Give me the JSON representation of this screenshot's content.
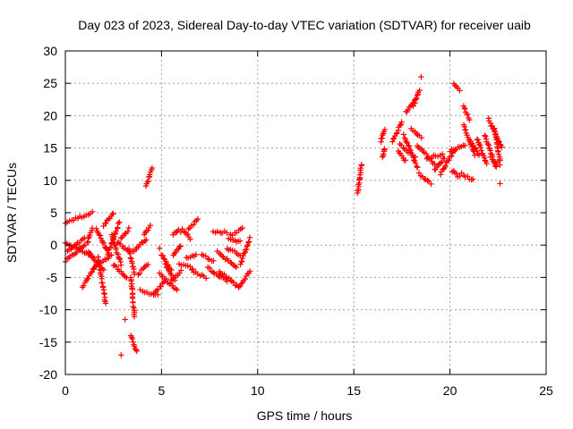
{
  "chart_data": {
    "type": "scatter",
    "title": "Day 023 of 2023, Sidereal Day-to-day VTEC variation (SDTVAR) for receiver uaib",
    "xlabel": "GPS time / hours",
    "ylabel": "SDTVAR / TECUs",
    "xlim": [
      0,
      25
    ],
    "ylim": [
      -20,
      30
    ],
    "xticks": [
      0,
      5,
      10,
      15,
      20,
      25
    ],
    "yticks": [
      -20,
      -15,
      -10,
      -5,
      0,
      5,
      10,
      15,
      20,
      25,
      30
    ],
    "grid": true,
    "marker": "+",
    "color": "#ff0000",
    "segments": [
      {
        "x0": 0.0,
        "y0": -2.5,
        "x1": 1.2,
        "y1": 0.5
      },
      {
        "x0": 0.0,
        "y0": 3.5,
        "x1": 1.4,
        "y1": 5.0
      },
      {
        "x0": 0.0,
        "y0": 0.5,
        "x1": 1.5,
        "y1": -2.0
      },
      {
        "x0": 0.1,
        "y0": -1.0,
        "x1": 1.0,
        "y1": 1.0
      },
      {
        "x0": 0.9,
        "y0": -6.5,
        "x1": 1.6,
        "y1": -3.0
      },
      {
        "x0": 1.2,
        "y0": 1.0,
        "x1": 1.4,
        "y1": 2.5
      },
      {
        "x0": 1.2,
        "y0": -1.0,
        "x1": 2.0,
        "y1": -4.0
      },
      {
        "x0": 1.5,
        "y0": -3.5,
        "x1": 2.4,
        "y1": -1.5
      },
      {
        "x0": 1.6,
        "y0": 2.5,
        "x1": 2.2,
        "y1": -1.0
      },
      {
        "x0": 1.7,
        "y0": -2.0,
        "x1": 2.1,
        "y1": -9.0
      },
      {
        "x0": 2.0,
        "y0": 3.0,
        "x1": 2.5,
        "y1": 5.0
      },
      {
        "x0": 2.2,
        "y0": -1.5,
        "x1": 2.8,
        "y1": 3.5
      },
      {
        "x0": 2.4,
        "y0": 1.5,
        "x1": 2.9,
        "y1": -3.0
      },
      {
        "x0": 2.5,
        "y0": -3.0,
        "x1": 3.2,
        "y1": -5.0
      },
      {
        "x0": 2.7,
        "y0": 0.5,
        "x1": 3.3,
        "y1": -1.0
      },
      {
        "x0": 2.9,
        "y0": 1.0,
        "x1": 3.3,
        "y1": 2.5
      },
      {
        "x0": 3.3,
        "y0": -0.5,
        "x1": 3.6,
        "y1": -4.5
      },
      {
        "x0": 3.4,
        "y0": -5.0,
        "x1": 3.6,
        "y1": -11.0
      },
      {
        "x0": 3.4,
        "y0": -14.0,
        "x1": 3.7,
        "y1": -16.5
      },
      {
        "x0": 3.5,
        "y0": -1.0,
        "x1": 4.2,
        "y1": 1.0
      },
      {
        "x0": 3.8,
        "y0": -4.5,
        "x1": 4.3,
        "y1": -3.0
      },
      {
        "x0": 3.9,
        "y0": -7.0,
        "x1": 4.8,
        "y1": -7.8
      },
      {
        "x0": 4.1,
        "y0": 1.5,
        "x1": 4.4,
        "y1": 3.0
      },
      {
        "x0": 4.2,
        "y0": 9.0,
        "x1": 4.5,
        "y1": 12.0
      },
      {
        "x0": 4.6,
        "y0": -7.5,
        "x1": 5.2,
        "y1": -5.5
      },
      {
        "x0": 4.9,
        "y0": -4.5,
        "x1": 5.8,
        "y1": -7.0
      },
      {
        "x0": 5.0,
        "y0": -1.5,
        "x1": 5.5,
        "y1": -4.0
      },
      {
        "x0": 5.2,
        "y0": -3.0,
        "x1": 5.7,
        "y1": -5.5
      },
      {
        "x0": 5.5,
        "y0": -5.5,
        "x1": 6.0,
        "y1": -4.0
      },
      {
        "x0": 5.6,
        "y0": 1.5,
        "x1": 5.9,
        "y1": 2.5
      },
      {
        "x0": 5.6,
        "y0": -1.5,
        "x1": 6.0,
        "y1": 0.0
      },
      {
        "x0": 5.9,
        "y0": -3.0,
        "x1": 6.6,
        "y1": -3.5
      },
      {
        "x0": 6.1,
        "y0": 2.5,
        "x1": 6.5,
        "y1": 1.0
      },
      {
        "x0": 6.3,
        "y0": -2.0,
        "x1": 6.8,
        "y1": -1.5
      },
      {
        "x0": 6.4,
        "y0": 2.5,
        "x1": 6.9,
        "y1": 4.0
      },
      {
        "x0": 6.6,
        "y0": -4.0,
        "x1": 7.3,
        "y1": -5.0
      },
      {
        "x0": 7.1,
        "y0": -1.5,
        "x1": 7.7,
        "y1": -2.5
      },
      {
        "x0": 7.4,
        "y0": -3.5,
        "x1": 8.4,
        "y1": -5.5
      },
      {
        "x0": 7.7,
        "y0": 2.0,
        "x1": 8.4,
        "y1": 2.0
      },
      {
        "x0": 7.9,
        "y0": -1.0,
        "x1": 8.9,
        "y1": -3.5
      },
      {
        "x0": 8.0,
        "y0": -4.0,
        "x1": 9.0,
        "y1": -6.5
      },
      {
        "x0": 8.4,
        "y0": -0.5,
        "x1": 9.1,
        "y1": -1.5
      },
      {
        "x0": 8.5,
        "y0": 1.0,
        "x1": 9.1,
        "y1": 0.5
      },
      {
        "x0": 8.6,
        "y0": 1.5,
        "x1": 9.2,
        "y1": 2.5
      },
      {
        "x0": 9.0,
        "y0": -6.5,
        "x1": 9.6,
        "y1": -4.0
      },
      {
        "x0": 9.1,
        "y0": -3.0,
        "x1": 9.6,
        "y1": 1.0
      },
      {
        "x0": 15.2,
        "y0": 8.0,
        "x1": 15.4,
        "y1": 12.5
      },
      {
        "x0": 16.5,
        "y0": 13.5,
        "x1": 16.6,
        "y1": 15.0
      },
      {
        "x0": 16.4,
        "y0": 16.0,
        "x1": 16.6,
        "y1": 17.8
      },
      {
        "x0": 17.0,
        "y0": 16.0,
        "x1": 17.5,
        "y1": 19.0
      },
      {
        "x0": 17.3,
        "y0": 14.5,
        "x1": 17.7,
        "y1": 13.0
      },
      {
        "x0": 17.4,
        "y0": 15.5,
        "x1": 18.2,
        "y1": 13.5
      },
      {
        "x0": 17.6,
        "y0": 17.0,
        "x1": 18.3,
        "y1": 12.0
      },
      {
        "x0": 17.7,
        "y0": 20.5,
        "x1": 18.2,
        "y1": 22.5
      },
      {
        "x0": 18.1,
        "y0": 21.5,
        "x1": 18.4,
        "y1": 24.0
      },
      {
        "x0": 18.0,
        "y0": 18.0,
        "x1": 18.5,
        "y1": 16.5
      },
      {
        "x0": 18.3,
        "y0": 15.5,
        "x1": 19.2,
        "y1": 12.5
      },
      {
        "x0": 18.4,
        "y0": 11.0,
        "x1": 19.0,
        "y1": 9.5
      },
      {
        "x0": 18.8,
        "y0": 13.5,
        "x1": 19.6,
        "y1": 14.0
      },
      {
        "x0": 19.2,
        "y0": 11.5,
        "x1": 19.7,
        "y1": 13.5
      },
      {
        "x0": 19.5,
        "y0": 11.0,
        "x1": 20.3,
        "y1": 15.0
      },
      {
        "x0": 20.0,
        "y0": 14.5,
        "x1": 20.8,
        "y1": 15.5
      },
      {
        "x0": 20.2,
        "y0": 25.0,
        "x1": 20.5,
        "y1": 24.0
      },
      {
        "x0": 20.1,
        "y0": 11.5,
        "x1": 20.5,
        "y1": 10.5
      },
      {
        "x0": 20.6,
        "y0": 11.0,
        "x1": 21.2,
        "y1": 10.0
      },
      {
        "x0": 20.7,
        "y0": 18.5,
        "x1": 21.3,
        "y1": 14.0
      },
      {
        "x0": 20.7,
        "y0": 21.5,
        "x1": 21.0,
        "y1": 19.5
      },
      {
        "x0": 21.1,
        "y0": 16.0,
        "x1": 21.5,
        "y1": 14.0
      },
      {
        "x0": 21.4,
        "y0": 16.5,
        "x1": 21.9,
        "y1": 12.5
      },
      {
        "x0": 21.8,
        "y0": 17.0,
        "x1": 22.4,
        "y1": 12.0
      },
      {
        "x0": 22.0,
        "y0": 19.5,
        "x1": 22.7,
        "y1": 15.0
      },
      {
        "x0": 22.1,
        "y0": 13.5,
        "x1": 22.6,
        "y1": 12.5
      },
      {
        "x0": 22.3,
        "y0": 18.0,
        "x1": 22.6,
        "y1": 13.0
      }
    ],
    "isolated_points": [
      {
        "x": 2.9,
        "y": -17.0
      },
      {
        "x": 4.9,
        "y": -0.5
      },
      {
        "x": 18.5,
        "y": 26.0
      },
      {
        "x": 22.6,
        "y": 9.5
      },
      {
        "x": 3.1,
        "y": -11.5
      },
      {
        "x": 6.0,
        "y": 2.0
      }
    ]
  }
}
